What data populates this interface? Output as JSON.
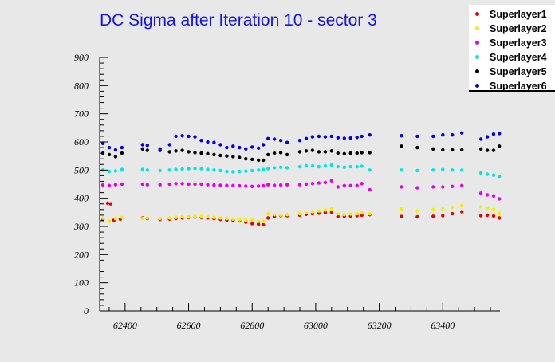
{
  "chart_data": {
    "type": "scatter",
    "title": "DC Sigma after Iteration 10 - sector 3",
    "xlabel": "",
    "ylabel": "",
    "xlim": [
      62320,
      63580
    ],
    "ylim": [
      0,
      900
    ],
    "grid": false,
    "legend_position": "top-right",
    "x_ticks": [
      62400,
      62600,
      62800,
      63000,
      63200,
      63400
    ],
    "y_ticks": [
      0,
      100,
      200,
      300,
      400,
      500,
      600,
      700,
      800,
      900
    ],
    "x_tick_labels": [
      "62400",
      "62600",
      "62800",
      "63000",
      "63200",
      "63400"
    ],
    "y_tick_labels": [
      "0",
      "100",
      "200",
      "300",
      "400",
      "500",
      "600",
      "700",
      "800",
      "900"
    ],
    "series": [
      {
        "name": "Superlayer1",
        "color": "#e60000",
        "points": [
          [
            62330,
            325
          ],
          [
            62345,
            382
          ],
          [
            62355,
            380
          ],
          [
            62365,
            322
          ],
          [
            62385,
            326
          ],
          [
            62455,
            330
          ],
          [
            62470,
            328
          ],
          [
            62510,
            325
          ],
          [
            62540,
            326
          ],
          [
            62560,
            328
          ],
          [
            62580,
            330
          ],
          [
            62600,
            332
          ],
          [
            62620,
            333
          ],
          [
            62640,
            332
          ],
          [
            62660,
            330
          ],
          [
            62680,
            328
          ],
          [
            62700,
            325
          ],
          [
            62720,
            322
          ],
          [
            62740,
            322
          ],
          [
            62760,
            320
          ],
          [
            62780,
            315
          ],
          [
            62800,
            310
          ],
          [
            62820,
            308
          ],
          [
            62835,
            306
          ],
          [
            62850,
            330
          ],
          [
            62870,
            335
          ],
          [
            62890,
            338
          ],
          [
            62910,
            338
          ],
          [
            62950,
            340
          ],
          [
            62970,
            343
          ],
          [
            62990,
            345
          ],
          [
            63010,
            347
          ],
          [
            63030,
            349
          ],
          [
            63050,
            350
          ],
          [
            63070,
            335
          ],
          [
            63090,
            336
          ],
          [
            63110,
            337
          ],
          [
            63130,
            338
          ],
          [
            63145,
            340
          ],
          [
            63170,
            342
          ],
          [
            63270,
            335
          ],
          [
            63320,
            334
          ],
          [
            63370,
            336
          ],
          [
            63400,
            338
          ],
          [
            63430,
            345
          ],
          [
            63460,
            352
          ],
          [
            63520,
            338
          ],
          [
            63540,
            340
          ],
          [
            63560,
            337
          ],
          [
            63578,
            330
          ]
        ]
      },
      {
        "name": "Superlayer2",
        "color": "#f0f000",
        "points": [
          [
            62330,
            330
          ],
          [
            62350,
            318
          ],
          [
            62370,
            328
          ],
          [
            62390,
            332
          ],
          [
            62455,
            328
          ],
          [
            62470,
            330
          ],
          [
            62510,
            328
          ],
          [
            62540,
            330
          ],
          [
            62560,
            332
          ],
          [
            62580,
            334
          ],
          [
            62600,
            334
          ],
          [
            62620,
            335
          ],
          [
            62640,
            336
          ],
          [
            62660,
            334
          ],
          [
            62680,
            332
          ],
          [
            62700,
            330
          ],
          [
            62720,
            328
          ],
          [
            62740,
            326
          ],
          [
            62760,
            324
          ],
          [
            62780,
            322
          ],
          [
            62800,
            322
          ],
          [
            62820,
            318
          ],
          [
            62835,
            318
          ],
          [
            62850,
            345
          ],
          [
            62870,
            342
          ],
          [
            62890,
            340
          ],
          [
            62910,
            342
          ],
          [
            62950,
            345
          ],
          [
            62970,
            350
          ],
          [
            62990,
            352
          ],
          [
            63010,
            355
          ],
          [
            63030,
            358
          ],
          [
            63050,
            362
          ],
          [
            63070,
            345
          ],
          [
            63090,
            342
          ],
          [
            63110,
            344
          ],
          [
            63130,
            345
          ],
          [
            63145,
            348
          ],
          [
            63170,
            345
          ],
          [
            63270,
            362
          ],
          [
            63320,
            355
          ],
          [
            63370,
            360
          ],
          [
            63400,
            362
          ],
          [
            63430,
            368
          ],
          [
            63460,
            374
          ],
          [
            63520,
            370
          ],
          [
            63540,
            365
          ],
          [
            63560,
            360
          ],
          [
            63578,
            345
          ]
        ]
      },
      {
        "name": "Superlayer3",
        "color": "#e600e6",
        "points": [
          [
            62330,
            447
          ],
          [
            62350,
            445
          ],
          [
            62370,
            448
          ],
          [
            62390,
            450
          ],
          [
            62455,
            450
          ],
          [
            62470,
            448
          ],
          [
            62510,
            448
          ],
          [
            62540,
            450
          ],
          [
            62560,
            452
          ],
          [
            62580,
            452
          ],
          [
            62600,
            450
          ],
          [
            62620,
            450
          ],
          [
            62640,
            450
          ],
          [
            62660,
            448
          ],
          [
            62680,
            447
          ],
          [
            62700,
            446
          ],
          [
            62720,
            445
          ],
          [
            62740,
            445
          ],
          [
            62760,
            444
          ],
          [
            62780,
            443
          ],
          [
            62800,
            442
          ],
          [
            62820,
            443
          ],
          [
            62835,
            444
          ],
          [
            62850,
            448
          ],
          [
            62870,
            446
          ],
          [
            62890,
            447
          ],
          [
            62910,
            448
          ],
          [
            62950,
            448
          ],
          [
            62970,
            450
          ],
          [
            62990,
            452
          ],
          [
            63010,
            454
          ],
          [
            63030,
            456
          ],
          [
            63050,
            462
          ],
          [
            63070,
            440
          ],
          [
            63090,
            445
          ],
          [
            63110,
            445
          ],
          [
            63130,
            445
          ],
          [
            63145,
            452
          ],
          [
            63170,
            430
          ],
          [
            63270,
            440
          ],
          [
            63320,
            437
          ],
          [
            63370,
            440
          ],
          [
            63400,
            440
          ],
          [
            63430,
            442
          ],
          [
            63460,
            445
          ],
          [
            63520,
            418
          ],
          [
            63540,
            412
          ],
          [
            63560,
            408
          ],
          [
            63578,
            398
          ]
        ]
      },
      {
        "name": "Superlayer4",
        "color": "#00e6e6",
        "points": [
          [
            62330,
            500
          ],
          [
            62350,
            495
          ],
          [
            62370,
            497
          ],
          [
            62390,
            502
          ],
          [
            62455,
            502
          ],
          [
            62470,
            500
          ],
          [
            62510,
            498
          ],
          [
            62540,
            500
          ],
          [
            62560,
            502
          ],
          [
            62580,
            504
          ],
          [
            62600,
            505
          ],
          [
            62620,
            506
          ],
          [
            62640,
            505
          ],
          [
            62660,
            502
          ],
          [
            62680,
            500
          ],
          [
            62700,
            498
          ],
          [
            62720,
            495
          ],
          [
            62740,
            494
          ],
          [
            62760,
            495
          ],
          [
            62780,
            496
          ],
          [
            62800,
            498
          ],
          [
            62820,
            500
          ],
          [
            62835,
            502
          ],
          [
            62850,
            505
          ],
          [
            62870,
            508
          ],
          [
            62890,
            510
          ],
          [
            62910,
            508
          ],
          [
            62950,
            512
          ],
          [
            62970,
            515
          ],
          [
            62990,
            515
          ],
          [
            63010,
            512
          ],
          [
            63030,
            515
          ],
          [
            63050,
            518
          ],
          [
            63070,
            512
          ],
          [
            63090,
            510
          ],
          [
            63110,
            512
          ],
          [
            63130,
            512
          ],
          [
            63145,
            514
          ],
          [
            63170,
            500
          ],
          [
            63270,
            500
          ],
          [
            63320,
            498
          ],
          [
            63370,
            500
          ],
          [
            63400,
            502
          ],
          [
            63430,
            500
          ],
          [
            63460,
            500
          ],
          [
            63520,
            490
          ],
          [
            63540,
            485
          ],
          [
            63560,
            482
          ],
          [
            63578,
            478
          ]
        ]
      },
      {
        "name": "Superlayer5",
        "color": "#000000",
        "points": [
          [
            62330,
            560
          ],
          [
            62350,
            555
          ],
          [
            62370,
            548
          ],
          [
            62390,
            560
          ],
          [
            62455,
            575
          ],
          [
            62470,
            570
          ],
          [
            62510,
            570
          ],
          [
            62540,
            565
          ],
          [
            62560,
            568
          ],
          [
            62580,
            570
          ],
          [
            62600,
            565
          ],
          [
            62620,
            562
          ],
          [
            62640,
            560
          ],
          [
            62660,
            558
          ],
          [
            62680,
            555
          ],
          [
            62700,
            552
          ],
          [
            62720,
            550
          ],
          [
            62740,
            548
          ],
          [
            62760,
            545
          ],
          [
            62780,
            540
          ],
          [
            62800,
            538
          ],
          [
            62820,
            535
          ],
          [
            62835,
            535
          ],
          [
            62850,
            555
          ],
          [
            62870,
            560
          ],
          [
            62890,
            562
          ],
          [
            62910,
            555
          ],
          [
            62950,
            565
          ],
          [
            62970,
            568
          ],
          [
            62990,
            570
          ],
          [
            63010,
            565
          ],
          [
            63030,
            565
          ],
          [
            63050,
            568
          ],
          [
            63070,
            560
          ],
          [
            63090,
            558
          ],
          [
            63110,
            560
          ],
          [
            63130,
            560
          ],
          [
            63145,
            562
          ],
          [
            63170,
            562
          ],
          [
            63270,
            585
          ],
          [
            63320,
            580
          ],
          [
            63370,
            575
          ],
          [
            63400,
            572
          ],
          [
            63430,
            572
          ],
          [
            63460,
            572
          ],
          [
            63520,
            575
          ],
          [
            63540,
            570
          ],
          [
            63560,
            570
          ],
          [
            63578,
            585
          ]
        ]
      },
      {
        "name": "Superlayer6",
        "color": "#0000e6",
        "points": [
          [
            62330,
            595
          ],
          [
            62350,
            580
          ],
          [
            62370,
            572
          ],
          [
            62390,
            580
          ],
          [
            62455,
            590
          ],
          [
            62470,
            588
          ],
          [
            62510,
            575
          ],
          [
            62540,
            590
          ],
          [
            62560,
            620
          ],
          [
            62580,
            622
          ],
          [
            62600,
            620
          ],
          [
            62620,
            618
          ],
          [
            62640,
            605
          ],
          [
            62660,
            600
          ],
          [
            62680,
            598
          ],
          [
            62700,
            590
          ],
          [
            62720,
            580
          ],
          [
            62740,
            585
          ],
          [
            62760,
            580
          ],
          [
            62780,
            575
          ],
          [
            62800,
            582
          ],
          [
            62820,
            578
          ],
          [
            62835,
            590
          ],
          [
            62850,
            612
          ],
          [
            62870,
            610
          ],
          [
            62890,
            605
          ],
          [
            62910,
            598
          ],
          [
            62950,
            605
          ],
          [
            62970,
            612
          ],
          [
            62990,
            618
          ],
          [
            63010,
            620
          ],
          [
            63030,
            618
          ],
          [
            63050,
            620
          ],
          [
            63070,
            615
          ],
          [
            63090,
            613
          ],
          [
            63110,
            614
          ],
          [
            63130,
            616
          ],
          [
            63145,
            620
          ],
          [
            63170,
            625
          ],
          [
            63270,
            622
          ],
          [
            63320,
            620
          ],
          [
            63370,
            620
          ],
          [
            63400,
            625
          ],
          [
            63430,
            625
          ],
          [
            63460,
            632
          ],
          [
            63520,
            610
          ],
          [
            63540,
            618
          ],
          [
            63560,
            628
          ],
          [
            63578,
            630
          ]
        ]
      }
    ]
  }
}
